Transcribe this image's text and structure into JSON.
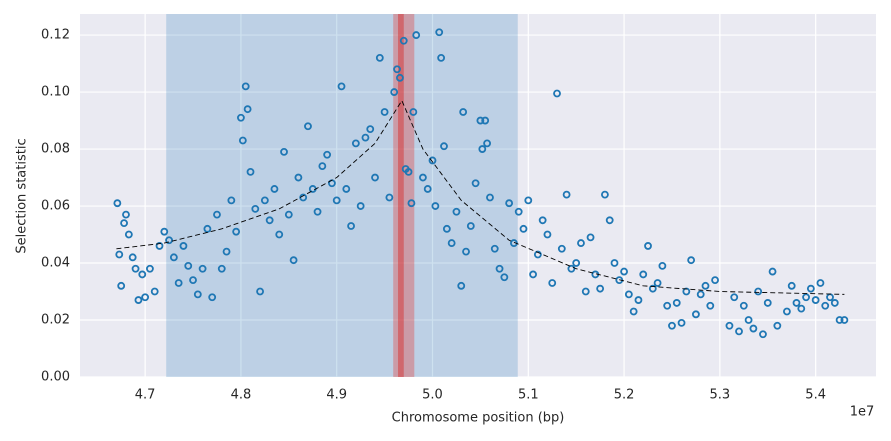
{
  "chart_data": {
    "type": "scatter",
    "xlabel": "Chromosome position (bp)",
    "ylabel": "Selection statistic",
    "x_offset_label": "1e7",
    "xlim": [
      4.632,
      5.463
    ],
    "ylim": [
      0,
      0.1274
    ],
    "xticks": [
      4.7,
      4.8,
      4.9,
      {
        "value": 5,
        "label": "5.0"
      },
      5.1,
      5.2,
      5.3,
      5.4
    ],
    "yticks": [
      {
        "value": 0,
        "label": "0.00"
      },
      {
        "value": 0.02,
        "label": "0.02"
      },
      {
        "value": 0.04,
        "label": "0.04"
      },
      {
        "value": 0.06,
        "label": "0.06"
      },
      {
        "value": 0.08,
        "label": "0.08"
      },
      {
        "value": 0.1,
        "label": "0.10"
      },
      {
        "value": 0.12,
        "label": "0.12"
      }
    ],
    "grid": true,
    "spans": [
      {
        "xlim": [
          4.722,
          5.089
        ],
        "color": "#1f77b4",
        "opacity": 0.22
      },
      {
        "xlim": [
          4.959,
          4.981
        ],
        "color": "#e24a4a",
        "opacity": 0.4
      },
      {
        "xlim": [
          4.964,
          4.97
        ],
        "color": "#d62728",
        "opacity": 0.45
      }
    ],
    "series": [
      {
        "color": "#1f77b4",
        "x": [
          4.671,
          4.673,
          4.675,
          4.678,
          4.68,
          4.683,
          4.687,
          4.69,
          4.693,
          4.697,
          4.7,
          4.705,
          4.71,
          4.715,
          4.72,
          4.725,
          4.73,
          4.735,
          4.74,
          4.745,
          4.75,
          4.755,
          4.76,
          4.765,
          4.77,
          4.775,
          4.78,
          4.785,
          4.79,
          4.795,
          4.8,
          4.802,
          4.805,
          4.807,
          4.81,
          4.815,
          4.82,
          4.825,
          4.83,
          4.835,
          4.84,
          4.845,
          4.85,
          4.855,
          4.86,
          4.865,
          4.87,
          4.875,
          4.88,
          4.885,
          4.89,
          4.895,
          4.9,
          4.905,
          4.91,
          4.915,
          4.92,
          4.925,
          4.93,
          4.935,
          4.94,
          4.945,
          4.95,
          4.955,
          4.96,
          4.963,
          4.966,
          4.97,
          4.972,
          4.975,
          4.978,
          4.98,
          4.983,
          4.99,
          4.995,
          5.0,
          5.003,
          5.007,
          5.009,
          5.012,
          5.015,
          5.02,
          5.025,
          5.03,
          5.032,
          5.035,
          5.04,
          5.045,
          5.05,
          5.052,
          5.055,
          5.057,
          5.06,
          5.065,
          5.07,
          5.075,
          5.08,
          5.085,
          5.09,
          5.095,
          5.1,
          5.105,
          5.11,
          5.115,
          5.12,
          5.125,
          5.13,
          5.135,
          5.14,
          5.145,
          5.15,
          5.155,
          5.16,
          5.165,
          5.17,
          5.175,
          5.18,
          5.185,
          5.19,
          5.195,
          5.2,
          5.205,
          5.21,
          5.215,
          5.22,
          5.225,
          5.23,
          5.235,
          5.24,
          5.245,
          5.25,
          5.255,
          5.26,
          5.265,
          5.27,
          5.275,
          5.28,
          5.285,
          5.29,
          5.295,
          5.31,
          5.315,
          5.32,
          5.325,
          5.33,
          5.335,
          5.34,
          5.345,
          5.35,
          5.355,
          5.36,
          5.37,
          5.375,
          5.38,
          5.385,
          5.39,
          5.395,
          5.4,
          5.405,
          5.41,
          5.415,
          5.42,
          5.425,
          5.43
        ],
        "values": [
          0.061,
          0.043,
          0.032,
          0.054,
          0.057,
          0.05,
          0.042,
          0.038,
          0.027,
          0.036,
          0.028,
          0.038,
          0.03,
          0.046,
          0.051,
          0.048,
          0.042,
          0.033,
          0.046,
          0.039,
          0.034,
          0.029,
          0.038,
          0.052,
          0.028,
          0.057,
          0.038,
          0.044,
          0.062,
          0.051,
          0.091,
          0.083,
          0.102,
          0.094,
          0.072,
          0.059,
          0.03,
          0.062,
          0.055,
          0.066,
          0.05,
          0.079,
          0.057,
          0.041,
          0.07,
          0.063,
          0.088,
          0.066,
          0.058,
          0.074,
          0.078,
          0.068,
          0.062,
          0.102,
          0.066,
          0.053,
          0.082,
          0.06,
          0.084,
          0.087,
          0.07,
          0.112,
          0.093,
          0.063,
          0.1,
          0.108,
          0.105,
          0.118,
          0.073,
          0.072,
          0.061,
          0.093,
          0.12,
          0.07,
          0.066,
          0.076,
          0.06,
          0.121,
          0.112,
          0.081,
          0.052,
          0.047,
          0.058,
          0.032,
          0.093,
          0.044,
          0.053,
          0.068,
          0.09,
          0.08,
          0.09,
          0.082,
          0.063,
          0.045,
          0.038,
          0.035,
          0.061,
          0.047,
          0.058,
          0.052,
          0.062,
          0.036,
          0.043,
          0.055,
          0.05,
          0.033,
          0.0995,
          0.045,
          0.064,
          0.038,
          0.04,
          0.047,
          0.03,
          0.049,
          0.036,
          0.031,
          0.064,
          0.055,
          0.04,
          0.034,
          0.037,
          0.029,
          0.023,
          0.027,
          0.036,
          0.046,
          0.031,
          0.033,
          0.039,
          0.025,
          0.018,
          0.026,
          0.019,
          0.03,
          0.041,
          0.022,
          0.029,
          0.032,
          0.025,
          0.034,
          0.018,
          0.028,
          0.016,
          0.025,
          0.02,
          0.017,
          0.03,
          0.015,
          0.026,
          0.037,
          0.018,
          0.023,
          0.032,
          0.026,
          0.024,
          0.028,
          0.031,
          0.027,
          0.033,
          0.025,
          0.028,
          0.026,
          0.02,
          0.02
        ]
      }
    ],
    "curve": {
      "color": "#000000",
      "x": [
        4.67,
        4.72,
        4.78,
        4.84,
        4.9,
        4.94,
        4.968,
        4.99,
        5.03,
        5.08,
        5.15,
        5.22,
        5.3,
        5.43
      ],
      "values": [
        0.045,
        0.047,
        0.052,
        0.059,
        0.07,
        0.082,
        0.097,
        0.08,
        0.062,
        0.048,
        0.038,
        0.032,
        0.03,
        0.029
      ]
    }
  }
}
